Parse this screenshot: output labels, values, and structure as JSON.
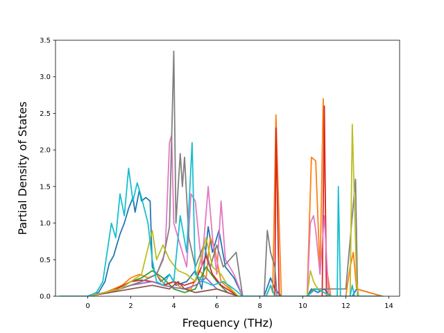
{
  "chart_data": {
    "type": "line",
    "title": "",
    "xlabel": "Frequency (THz)",
    "ylabel": "Partial Density of States",
    "xlim": [
      -1.5,
      14.5
    ],
    "ylim": [
      0,
      3.5
    ],
    "xticks": [
      0,
      2,
      4,
      6,
      8,
      10,
      12,
      14
    ],
    "xtick_labels": [
      "0",
      "2",
      "4",
      "6",
      "8",
      "10",
      "12",
      "14"
    ],
    "yticks": [
      0.0,
      0.5,
      1.0,
      1.5,
      2.0,
      2.5,
      3.0,
      3.5
    ],
    "ytick_labels": [
      "0.0",
      "0.5",
      "1.0",
      "1.5",
      "2.0",
      "2.5",
      "3.0",
      "3.5"
    ],
    "grid": false,
    "legend": "none",
    "series": [
      {
        "color": "#1f77b4",
        "points": [
          [
            -1.3,
            0
          ],
          [
            0,
            0
          ],
          [
            0.5,
            0.05
          ],
          [
            0.8,
            0.2
          ],
          [
            1.0,
            0.45
          ],
          [
            1.2,
            0.55
          ],
          [
            1.5,
            0.85
          ],
          [
            1.7,
            1.0
          ],
          [
            1.9,
            1.2
          ],
          [
            2.1,
            1.35
          ],
          [
            2.2,
            1.15
          ],
          [
            2.4,
            1.45
          ],
          [
            2.5,
            1.3
          ],
          [
            2.7,
            1.35
          ],
          [
            2.9,
            1.3
          ],
          [
            3.0,
            0.4
          ],
          [
            3.4,
            0.2
          ],
          [
            3.8,
            0.3
          ],
          [
            4.1,
            0.15
          ],
          [
            4.6,
            0.2
          ],
          [
            5.0,
            0.35
          ],
          [
            5.3,
            0.1
          ],
          [
            5.6,
            0.95
          ],
          [
            5.8,
            0.6
          ],
          [
            6.1,
            0.9
          ],
          [
            6.4,
            0.4
          ],
          [
            6.8,
            0.25
          ],
          [
            7.2,
            0
          ],
          [
            8.2,
            0
          ],
          [
            8.5,
            0.25
          ],
          [
            8.7,
            0.1
          ],
          [
            9.0,
            0
          ],
          [
            10.2,
            0
          ],
          [
            10.4,
            0.1
          ],
          [
            10.7,
            0.05
          ],
          [
            11.0,
            0.1
          ],
          [
            11.3,
            0
          ],
          [
            12.3,
            0
          ],
          [
            12.5,
            0.1
          ],
          [
            13.7,
            0
          ]
        ]
      },
      {
        "color": "#ff7f0e",
        "points": [
          [
            -1.3,
            0
          ],
          [
            0,
            0
          ],
          [
            0.8,
            0.05
          ],
          [
            1.2,
            0.1
          ],
          [
            1.6,
            0.15
          ],
          [
            2.0,
            0.25
          ],
          [
            2.4,
            0.3
          ],
          [
            2.8,
            0.25
          ],
          [
            3.2,
            0.3
          ],
          [
            3.6,
            0.15
          ],
          [
            4.0,
            0.2
          ],
          [
            4.4,
            0.1
          ],
          [
            4.8,
            0.1
          ],
          [
            5.2,
            0.35
          ],
          [
            5.5,
            0.25
          ],
          [
            5.7,
            0.8
          ],
          [
            5.9,
            0.65
          ],
          [
            6.2,
            0.2
          ],
          [
            6.6,
            0.1
          ],
          [
            7.0,
            0
          ],
          [
            8.3,
            0
          ],
          [
            8.5,
            0.15
          ],
          [
            8.6,
            0.05
          ],
          [
            8.75,
            2.48
          ],
          [
            8.85,
            1.5
          ],
          [
            9.0,
            0
          ],
          [
            10.2,
            0
          ],
          [
            10.4,
            1.9
          ],
          [
            10.6,
            1.85
          ],
          [
            10.8,
            0.3
          ],
          [
            10.95,
            2.7
          ],
          [
            11.1,
            0.4
          ],
          [
            11.3,
            0
          ],
          [
            12.0,
            0
          ],
          [
            12.2,
            0.4
          ],
          [
            12.35,
            0.6
          ],
          [
            12.5,
            0.1
          ],
          [
            13.7,
            0
          ]
        ]
      },
      {
        "color": "#2ca02c",
        "points": [
          [
            -1.3,
            0
          ],
          [
            0,
            0
          ],
          [
            1.0,
            0.05
          ],
          [
            1.5,
            0.1
          ],
          [
            2.0,
            0.2
          ],
          [
            2.5,
            0.25
          ],
          [
            3.0,
            0.35
          ],
          [
            3.5,
            0.25
          ],
          [
            4.0,
            0.1
          ],
          [
            4.5,
            0.05
          ],
          [
            5.0,
            0.1
          ],
          [
            5.5,
            0.4
          ],
          [
            6.0,
            0.2
          ],
          [
            6.5,
            0.05
          ],
          [
            7.0,
            0
          ],
          [
            13.7,
            0
          ]
        ]
      },
      {
        "color": "#d62728",
        "points": [
          [
            -1.3,
            0
          ],
          [
            0,
            0
          ],
          [
            1.0,
            0.05
          ],
          [
            2.0,
            0.2
          ],
          [
            2.5,
            0.22
          ],
          [
            3.0,
            0.2
          ],
          [
            3.5,
            0.15
          ],
          [
            4.0,
            0.2
          ],
          [
            4.5,
            0.15
          ],
          [
            5.0,
            0.2
          ],
          [
            5.5,
            0.55
          ],
          [
            5.8,
            0.3
          ],
          [
            6.2,
            0.15
          ],
          [
            7.0,
            0
          ],
          [
            8.7,
            0
          ],
          [
            8.75,
            2.3
          ],
          [
            8.9,
            0
          ],
          [
            10.9,
            0
          ],
          [
            11.0,
            2.6
          ],
          [
            11.1,
            0
          ],
          [
            13.7,
            0
          ]
        ]
      },
      {
        "color": "#9467bd",
        "points": [
          [
            -1.3,
            0
          ],
          [
            0,
            0
          ],
          [
            1.0,
            0.05
          ],
          [
            2.0,
            0.15
          ],
          [
            3.0,
            0.2
          ],
          [
            3.5,
            0.15
          ],
          [
            4.0,
            0.12
          ],
          [
            4.5,
            0.1
          ],
          [
            5.0,
            0.15
          ],
          [
            5.5,
            0.25
          ],
          [
            6.0,
            0.1
          ],
          [
            7.0,
            0
          ],
          [
            13.7,
            0
          ]
        ]
      },
      {
        "color": "#8c564b",
        "points": [
          [
            -1.3,
            0
          ],
          [
            0,
            0
          ],
          [
            1.0,
            0.05
          ],
          [
            2.0,
            0.1
          ],
          [
            3.0,
            0.15
          ],
          [
            3.8,
            0.1
          ],
          [
            4.2,
            0.2
          ],
          [
            4.5,
            0.1
          ],
          [
            5.0,
            0.05
          ],
          [
            6.0,
            0.1
          ],
          [
            7.0,
            0
          ],
          [
            13.7,
            0
          ]
        ]
      },
      {
        "color": "#e377c2",
        "points": [
          [
            -1.3,
            0
          ],
          [
            0,
            0
          ],
          [
            1.5,
            0.1
          ],
          [
            2.5,
            0.2
          ],
          [
            3.2,
            0.3
          ],
          [
            3.6,
            0.6
          ],
          [
            3.8,
            2.1
          ],
          [
            3.9,
            2.2
          ],
          [
            4.0,
            1.0
          ],
          [
            4.3,
            0.7
          ],
          [
            4.6,
            0.4
          ],
          [
            4.8,
            1.4
          ],
          [
            5.0,
            1.3
          ],
          [
            5.3,
            0.4
          ],
          [
            5.6,
            1.5
          ],
          [
            5.8,
            0.8
          ],
          [
            6.0,
            0.3
          ],
          [
            6.2,
            1.3
          ],
          [
            6.4,
            0.5
          ],
          [
            6.8,
            0.3
          ],
          [
            7.2,
            0
          ],
          [
            10.2,
            0
          ],
          [
            10.35,
            1.0
          ],
          [
            10.5,
            1.1
          ],
          [
            10.6,
            0.9
          ],
          [
            10.8,
            0.3
          ],
          [
            11.0,
            1.1
          ],
          [
            11.2,
            0
          ],
          [
            13.7,
            0
          ]
        ]
      },
      {
        "color": "#7f7f7f",
        "points": [
          [
            -1.3,
            0
          ],
          [
            0,
            0
          ],
          [
            1.5,
            0.1
          ],
          [
            2.5,
            0.2
          ],
          [
            3.2,
            0.3
          ],
          [
            3.5,
            0.5
          ],
          [
            3.8,
            0.95
          ],
          [
            4.0,
            3.35
          ],
          [
            4.1,
            1.0
          ],
          [
            4.3,
            1.95
          ],
          [
            4.4,
            1.5
          ],
          [
            4.5,
            1.9
          ],
          [
            4.7,
            0.8
          ],
          [
            5.0,
            0.4
          ],
          [
            5.4,
            0.7
          ],
          [
            5.7,
            0.4
          ],
          [
            6.0,
            0.7
          ],
          [
            6.3,
            0.4
          ],
          [
            6.6,
            0.5
          ],
          [
            6.9,
            0.6
          ],
          [
            7.2,
            0
          ],
          [
            8.2,
            0
          ],
          [
            8.35,
            0.9
          ],
          [
            8.5,
            0.6
          ],
          [
            8.7,
            0.4
          ],
          [
            8.8,
            0
          ],
          [
            10.2,
            0
          ],
          [
            10.5,
            0.1
          ],
          [
            11.2,
            0.1
          ],
          [
            12.0,
            0.1
          ],
          [
            12.45,
            1.6
          ],
          [
            12.55,
            0
          ],
          [
            13.7,
            0
          ]
        ]
      },
      {
        "color": "#bcbd22",
        "points": [
          [
            -1.3,
            0
          ],
          [
            0,
            0
          ],
          [
            1.5,
            0.1
          ],
          [
            2.5,
            0.3
          ],
          [
            3.0,
            0.9
          ],
          [
            3.2,
            0.5
          ],
          [
            3.5,
            0.7
          ],
          [
            3.8,
            0.5
          ],
          [
            4.2,
            0.35
          ],
          [
            4.6,
            0.3
          ],
          [
            5.0,
            0.2
          ],
          [
            5.5,
            0.8
          ],
          [
            5.8,
            0.4
          ],
          [
            6.2,
            0.3
          ],
          [
            6.5,
            0.15
          ],
          [
            7.0,
            0
          ],
          [
            10.2,
            0
          ],
          [
            10.35,
            0.35
          ],
          [
            10.5,
            0.2
          ],
          [
            10.7,
            0.1
          ],
          [
            11.0,
            0.05
          ],
          [
            11.2,
            0
          ],
          [
            12.2,
            0
          ],
          [
            12.3,
            2.35
          ],
          [
            12.4,
            1.3
          ],
          [
            12.5,
            0.2
          ],
          [
            12.6,
            0
          ],
          [
            13.7,
            0
          ]
        ]
      },
      {
        "color": "#17becf",
        "points": [
          [
            -1.3,
            0
          ],
          [
            0,
            0
          ],
          [
            0.4,
            0.05
          ],
          [
            0.7,
            0.2
          ],
          [
            0.9,
            0.6
          ],
          [
            1.1,
            1.0
          ],
          [
            1.3,
            0.8
          ],
          [
            1.5,
            1.4
          ],
          [
            1.7,
            1.1
          ],
          [
            1.9,
            1.75
          ],
          [
            2.1,
            1.3
          ],
          [
            2.3,
            1.55
          ],
          [
            2.5,
            1.35
          ],
          [
            2.8,
            1.0
          ],
          [
            3.0,
            0.5
          ],
          [
            3.2,
            0.2
          ],
          [
            3.5,
            0.15
          ],
          [
            3.8,
            0.3
          ],
          [
            4.0,
            0.2
          ],
          [
            4.3,
            1.1
          ],
          [
            4.6,
            0.6
          ],
          [
            4.85,
            2.1
          ],
          [
            5.0,
            0.3
          ],
          [
            5.4,
            0.2
          ],
          [
            5.8,
            0.15
          ],
          [
            6.3,
            0.2
          ],
          [
            6.8,
            0.1
          ],
          [
            7.2,
            0
          ],
          [
            8.3,
            0
          ],
          [
            8.5,
            0.15
          ],
          [
            8.7,
            0
          ],
          [
            10.2,
            0
          ],
          [
            10.6,
            0.1
          ],
          [
            11.0,
            0.05
          ],
          [
            11.3,
            0
          ],
          [
            11.6,
            0
          ],
          [
            11.65,
            1.5
          ],
          [
            11.75,
            0
          ],
          [
            12.2,
            0
          ],
          [
            12.3,
            0.15
          ],
          [
            12.4,
            0
          ],
          [
            13.7,
            0
          ]
        ]
      }
    ]
  }
}
